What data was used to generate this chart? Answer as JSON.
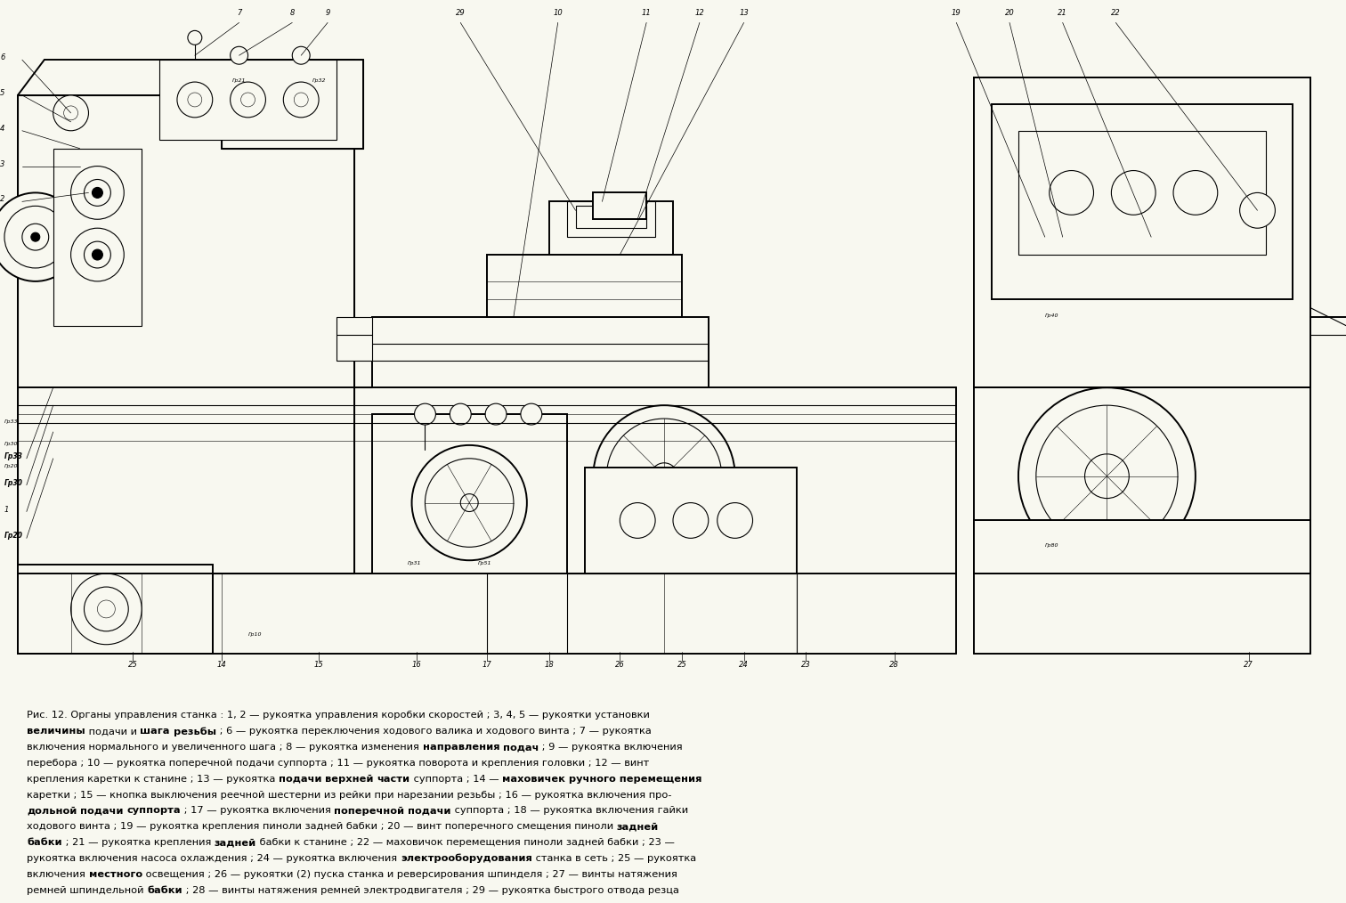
{
  "bg_color": "#f8f8f0",
  "fig_width": 15.12,
  "fig_height": 10.14,
  "caption_lines": [
    [
      {
        "text": "Рис. 12. Органы управления станка : 1, 2 — рукоятка управления коробки скоростей ; 3, 4, 5 — рукоятки установки",
        "bold": false
      }
    ],
    [
      {
        "text": "величины",
        "bold": true
      },
      {
        "text": " подачи и ",
        "bold": false
      },
      {
        "text": "шага",
        "bold": true
      },
      {
        "text": " ",
        "bold": false
      },
      {
        "text": "резьбы",
        "bold": true
      },
      {
        "text": " ; 6 — рукоятка переключения ходового валика и ходового винта ; 7 — рукоятка",
        "bold": false
      }
    ],
    [
      {
        "text": "включения нормального и увеличенного шага ; 8 — рукоятка изменения ",
        "bold": false
      },
      {
        "text": "направления",
        "bold": true
      },
      {
        "text": " ",
        "bold": false
      },
      {
        "text": "подач",
        "bold": true
      },
      {
        "text": " ; 9 — рукоятка включения",
        "bold": false
      }
    ],
    [
      {
        "text": "перебора ; 10 — рукоятка поперечной подачи суппорта ; 11 — рукоятка поворота и крепления головки ; 12 — винт",
        "bold": false
      }
    ],
    [
      {
        "text": "крепления каретки к станине ; 13 — рукоятка ",
        "bold": false
      },
      {
        "text": "подачи",
        "bold": true
      },
      {
        "text": " ",
        "bold": false
      },
      {
        "text": "верхней",
        "bold": true
      },
      {
        "text": " ",
        "bold": false
      },
      {
        "text": "части",
        "bold": true
      },
      {
        "text": " суппорта ; 14 — ",
        "bold": false
      },
      {
        "text": "маховичек ручного перемещения",
        "bold": true
      }
    ],
    [
      {
        "text": "каретки ; 15 — кнопка выключения реечной шестерни из рейки при нарезании резьбы ; 16 — рукоятка включения про-",
        "bold": false
      }
    ],
    [
      {
        "text": "дольной",
        "bold": true
      },
      {
        "text": " ",
        "bold": false
      },
      {
        "text": "подачи",
        "bold": true
      },
      {
        "text": " ",
        "bold": false
      },
      {
        "text": "суппорта",
        "bold": true
      },
      {
        "text": " ; 17 — рукоятка включения ",
        "bold": false
      },
      {
        "text": "поперечной",
        "bold": true
      },
      {
        "text": " ",
        "bold": false
      },
      {
        "text": "подачи",
        "bold": true
      },
      {
        "text": " суппорта ; 18 — рукоятка включения гайки",
        "bold": false
      }
    ],
    [
      {
        "text": "ходового винта ; 19 — рукоятка крепления пиноли задней бабки ; 20 — винт поперечного смещения пиноли ",
        "bold": false
      },
      {
        "text": "задней",
        "bold": true
      }
    ],
    [
      {
        "text": "бабки",
        "bold": true
      },
      {
        "text": " ; 21 — рукоятка крепления ",
        "bold": false
      },
      {
        "text": "задней",
        "bold": true
      },
      {
        "text": " бабки к станине ; 22 — маховичок перемещения пиноли задней бабки ; 23 —",
        "bold": false
      }
    ],
    [
      {
        "text": "рукоятка включения насоса охлаждения ; 24 — рукоятка включения ",
        "bold": false
      },
      {
        "text": "электрооборудования",
        "bold": true
      },
      {
        "text": " станка в сеть ; 25 — рукоятка",
        "bold": false
      }
    ],
    [
      {
        "text": "включения ",
        "bold": false
      },
      {
        "text": "местного",
        "bold": true
      },
      {
        "text": " освещения ; 26 — рукоятки (2) пуска станка и реверсирования шпинделя ; 27 — винты натяжения",
        "bold": false
      }
    ],
    [
      {
        "text": "ремней шпиндельной ",
        "bold": false
      },
      {
        "text": "бабки",
        "bold": true
      },
      {
        "text": " ; 28 — винты натяжения ремней электродвигателя ; 29 — рукоятка быстрого отвода резца",
        "bold": false
      }
    ]
  ]
}
